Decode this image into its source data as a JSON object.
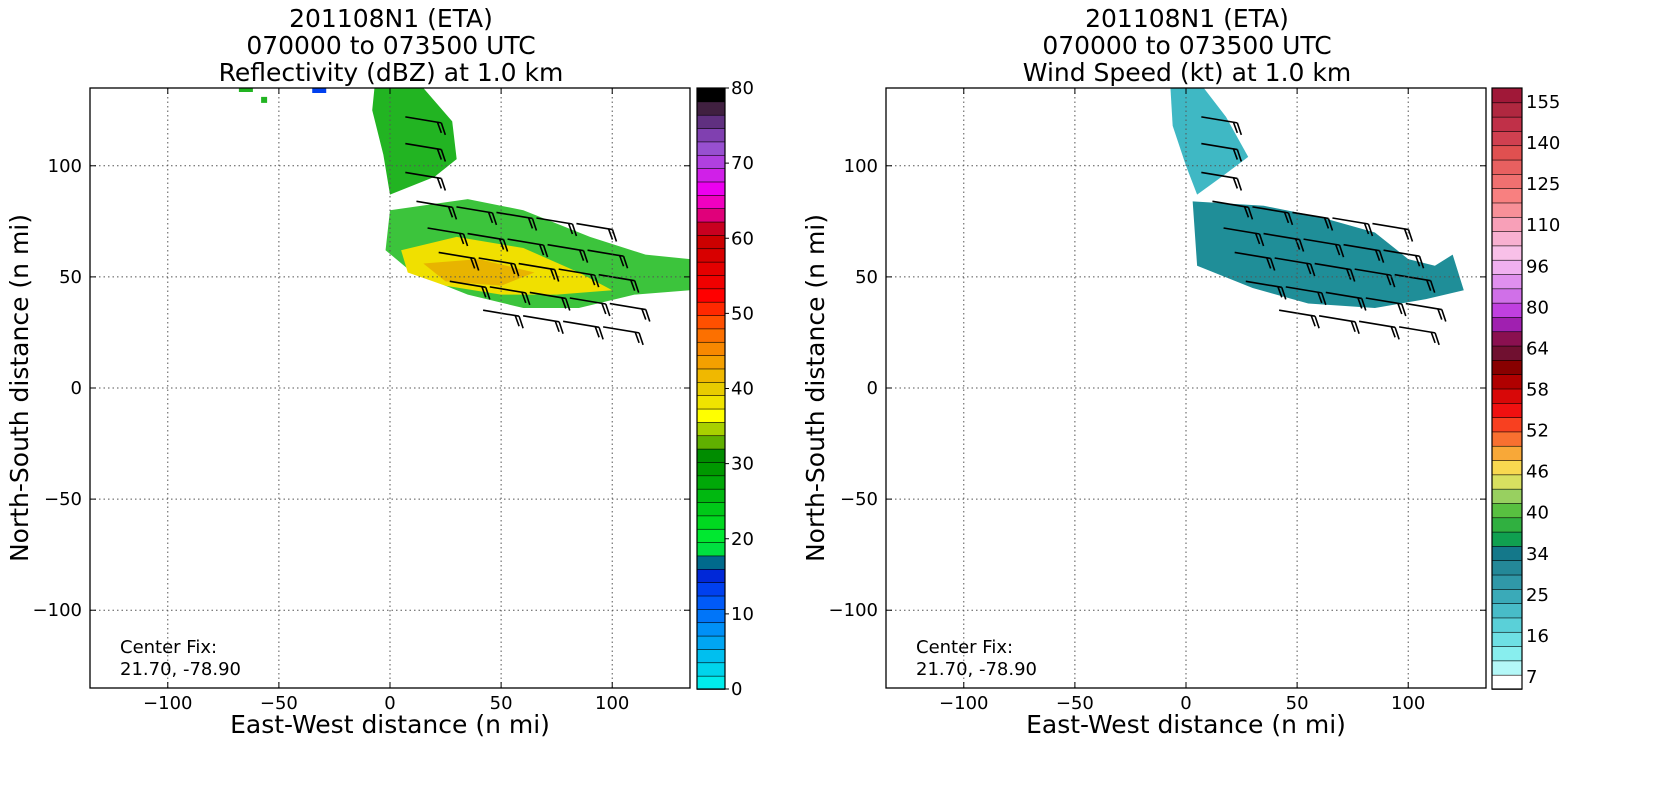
{
  "chart_data": [
    {
      "type": "heatmap",
      "title_lines": [
        "201108N1 (ETA)",
        "070000 to 073500 UTC",
        "Reflectivity (dBZ) at 1.0 km"
      ],
      "xlabel": "East-West distance (n mi)",
      "ylabel": "North-South distance (n mi)",
      "xlim": [
        -135,
        135
      ],
      "ylim": [
        -135,
        135
      ],
      "x_ticks": [
        -100,
        -50,
        0,
        50,
        100
      ],
      "y_ticks": [
        -100,
        -50,
        0,
        50,
        100
      ],
      "grid": true,
      "annotation_lines": [
        "Center Fix:",
        "21.70, -78.90"
      ],
      "colorbar": {
        "label_values": [
          0,
          10,
          20,
          30,
          40,
          50,
          60,
          70,
          80
        ],
        "min": 0,
        "max": 80,
        "colors": [
          "#00ecec",
          "#00d4ec",
          "#00bfef",
          "#00a6f3",
          "#0090f7",
          "#0075f9",
          "#005af9",
          "#0040ef",
          "#0028d8",
          "#006a8c",
          "#00e040",
          "#00e830",
          "#00d820",
          "#00c818",
          "#00b810",
          "#00a808",
          "#009800",
          "#008c00",
          "#60b000",
          "#a8d000",
          "#ffff00",
          "#f0e400",
          "#e8cc00",
          "#f0b800",
          "#f4a000",
          "#f88800",
          "#fc7000",
          "#ff5000",
          "#ff2800",
          "#ff0000",
          "#f00000",
          "#e40000",
          "#d80000",
          "#cc0000",
          "#c80020",
          "#e0007a",
          "#f000c0",
          "#ec00f0",
          "#d020e8",
          "#b040e0",
          "#9850d0",
          "#8040b0",
          "#603080",
          "#402040",
          "#000000"
        ]
      },
      "wind_barbs_note": "Wind barbs overlaid on echo region"
    },
    {
      "type": "heatmap",
      "title_lines": [
        "201108N1 (ETA)",
        "070000 to 073500 UTC",
        "Wind Speed (kt) at 1.0 km"
      ],
      "xlabel": "East-West distance (n mi)",
      "ylabel": "North-South distance (n mi)",
      "xlim": [
        -135,
        135
      ],
      "ylim": [
        -135,
        135
      ],
      "x_ticks": [
        -100,
        -50,
        0,
        50,
        100
      ],
      "y_ticks": [
        -100,
        -50,
        0,
        50,
        100
      ],
      "grid": true,
      "annotation_lines": [
        "Center Fix:",
        "21.70, -78.90"
      ],
      "colorbar": {
        "labels": [
          "7",
          "16",
          "25",
          "34",
          "40",
          "46",
          "52",
          "58",
          "64",
          "80",
          "96",
          "110",
          "125",
          "140",
          "155"
        ],
        "colors": [
          "#ffffff",
          "#b4f8f8",
          "#88eeee",
          "#6ee0e4",
          "#5ad0d8",
          "#48bcc8",
          "#3aaab8",
          "#3098a8",
          "#248898",
          "#14788a",
          "#10a050",
          "#30b040",
          "#58c040",
          "#98d060",
          "#d8e060",
          "#f8d850",
          "#f8a838",
          "#f87030",
          "#f84020",
          "#f01010",
          "#d80808",
          "#b00000",
          "#880000",
          "#701030",
          "#8a1050",
          "#a020b0",
          "#c040e0",
          "#d070e8",
          "#e090ee",
          "#f0b0f0",
          "#f8c0e8",
          "#f8b0d0",
          "#f8a0b8",
          "#f89098",
          "#f88080",
          "#f07070",
          "#e86060",
          "#e05050",
          "#d04050",
          "#c03048",
          "#b02840",
          "#a01838"
        ]
      },
      "wind_barbs_note": "Wind barbs overlaid on echo region"
    }
  ]
}
